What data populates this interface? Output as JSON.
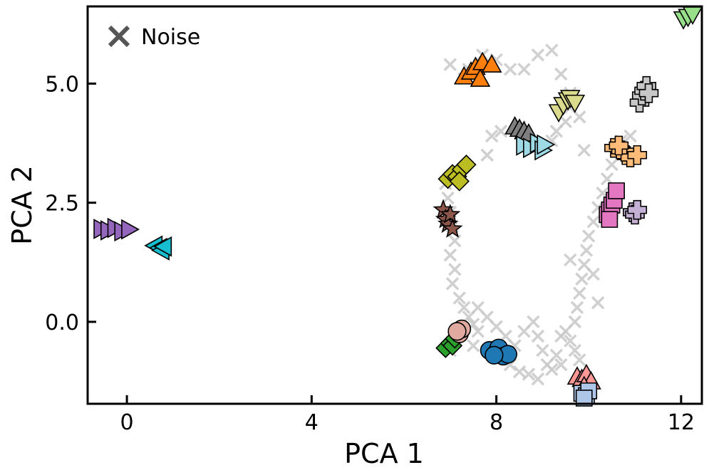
{
  "chart_data": {
    "type": "scatter",
    "title": "",
    "xlabel": "PCA 1",
    "ylabel": "PCA 2",
    "xlim": [
      -0.85,
      12.45
    ],
    "ylim": [
      -1.72,
      6.62
    ],
    "xticks": [
      0,
      4,
      8,
      12
    ],
    "xtick_labels": [
      "0",
      "4",
      "8",
      "12"
    ],
    "yticks": [
      0.0,
      2.5,
      5.0
    ],
    "ytick_labels": [
      "0.0",
      "2.5",
      "5.0"
    ],
    "grid": false,
    "legend": {
      "position": "top-left",
      "entries": [
        {
          "label": "Noise",
          "marker": "x",
          "color": "#555555"
        }
      ]
    },
    "noise": {
      "color": "#c8c8c8",
      "points": [
        [
          6.9,
          2.9
        ],
        [
          6.95,
          2.6
        ],
        [
          7.0,
          2.3
        ],
        [
          7.05,
          2.0
        ],
        [
          7.1,
          1.7
        ],
        [
          7.0,
          1.4
        ],
        [
          7.1,
          1.1
        ],
        [
          7.05,
          0.8
        ],
        [
          7.2,
          0.5
        ],
        [
          7.3,
          0.3
        ],
        [
          7.4,
          0.1
        ],
        [
          7.5,
          -0.05
        ],
        [
          7.6,
          -0.2
        ],
        [
          7.5,
          -0.5
        ],
        [
          7.1,
          -0.3
        ],
        [
          7.0,
          -0.6
        ],
        [
          7.6,
          0.3
        ],
        [
          7.8,
          0.1
        ],
        [
          8.0,
          -0.1
        ],
        [
          8.2,
          -0.3
        ],
        [
          8.4,
          -0.5
        ],
        [
          8.6,
          -0.2
        ],
        [
          8.8,
          0.0
        ],
        [
          8.9,
          -0.3
        ],
        [
          9.0,
          -0.6
        ],
        [
          9.1,
          -0.9
        ],
        [
          8.9,
          -1.2
        ],
        [
          8.7,
          -1.1
        ],
        [
          8.5,
          -1.05
        ],
        [
          9.2,
          -1.0
        ],
        [
          9.3,
          -0.7
        ],
        [
          9.4,
          -0.3
        ],
        [
          9.5,
          -0.2
        ],
        [
          9.6,
          -0.4
        ],
        [
          9.7,
          -0.6
        ],
        [
          9.8,
          -0.8
        ],
        [
          9.4,
          -0.9
        ],
        [
          8.3,
          -0.9
        ],
        [
          9.7,
          0.0
        ],
        [
          9.75,
          0.3
        ],
        [
          9.8,
          0.6
        ],
        [
          9.85,
          0.9
        ],
        [
          9.9,
          1.2
        ],
        [
          9.95,
          1.5
        ],
        [
          10.0,
          1.8
        ],
        [
          10.1,
          2.1
        ],
        [
          10.2,
          2.4
        ],
        [
          10.3,
          2.7
        ],
        [
          10.4,
          3.0
        ],
        [
          10.5,
          3.3
        ],
        [
          10.6,
          3.6
        ],
        [
          10.7,
          3.8
        ],
        [
          10.9,
          3.9
        ],
        [
          10.1,
          1.0
        ],
        [
          10.2,
          0.4
        ],
        [
          9.6,
          1.3
        ],
        [
          7.0,
          5.4
        ],
        [
          7.4,
          5.3
        ],
        [
          7.7,
          5.6
        ],
        [
          8.0,
          5.5
        ],
        [
          8.3,
          5.3
        ],
        [
          8.6,
          5.3
        ],
        [
          8.9,
          5.6
        ],
        [
          9.2,
          5.7
        ],
        [
          9.4,
          5.2
        ],
        [
          9.6,
          4.8
        ],
        [
          9.6,
          4.5
        ],
        [
          9.5,
          4.2
        ],
        [
          9.3,
          4.0
        ],
        [
          9.2,
          3.8
        ],
        [
          9.0,
          3.7
        ],
        [
          8.7,
          3.8
        ],
        [
          8.5,
          4.1
        ],
        [
          8.1,
          4.0
        ],
        [
          7.9,
          3.9
        ],
        [
          7.8,
          3.5
        ],
        [
          9.9,
          3.6
        ],
        [
          9.8,
          4.3
        ],
        [
          7.3,
          5.1
        ]
      ]
    },
    "clusters": [
      {
        "marker": "triangle-right",
        "color": "#9467bd",
        "points": [
          [
            -0.55,
            1.95
          ],
          [
            -0.4,
            1.92
          ],
          [
            -0.25,
            1.97
          ],
          [
            -0.1,
            1.9
          ],
          [
            0.05,
            1.94
          ]
        ]
      },
      {
        "marker": "triangle-left",
        "color": "#17becf",
        "points": [
          [
            0.6,
            1.6
          ],
          [
            0.7,
            1.55
          ],
          [
            0.75,
            1.5
          ],
          [
            0.8,
            1.58
          ]
        ]
      },
      {
        "marker": "triangle-up",
        "color": "#ff7f0e",
        "points": [
          [
            7.3,
            5.15
          ],
          [
            7.45,
            5.25
          ],
          [
            7.55,
            5.35
          ],
          [
            7.65,
            5.1
          ],
          [
            7.7,
            5.45
          ],
          [
            7.9,
            5.4
          ]
        ]
      },
      {
        "marker": "diamond",
        "color": "#bcbd22",
        "points": [
          [
            6.95,
            3.0
          ],
          [
            7.05,
            3.1
          ],
          [
            7.15,
            3.05
          ],
          [
            7.25,
            3.2
          ],
          [
            7.35,
            3.3
          ],
          [
            7.2,
            2.95
          ]
        ]
      },
      {
        "marker": "star",
        "color": "#8c564b",
        "points": [
          [
            6.85,
            2.35
          ],
          [
            6.9,
            2.15
          ],
          [
            6.95,
            2.05
          ],
          [
            7.0,
            2.25
          ],
          [
            7.05,
            1.95
          ]
        ]
      },
      {
        "marker": "diamond",
        "color": "#2ca02c",
        "points": [
          [
            6.9,
            -0.55
          ],
          [
            7.0,
            -0.45
          ],
          [
            7.05,
            -0.5
          ],
          [
            7.1,
            -0.35
          ]
        ]
      },
      {
        "marker": "circle",
        "color": "#e0aaa0",
        "points": [
          [
            7.2,
            -0.25
          ],
          [
            7.25,
            -0.15
          ],
          [
            7.15,
            -0.2
          ]
        ]
      },
      {
        "marker": "circle",
        "color": "#1f77b4",
        "points": [
          [
            7.85,
            -0.6
          ],
          [
            8.0,
            -0.65
          ],
          [
            8.05,
            -0.55
          ],
          [
            8.15,
            -0.72
          ],
          [
            8.25,
            -0.68
          ],
          [
            7.95,
            -0.7
          ]
        ]
      },
      {
        "marker": "triangle-up",
        "color": "#7f7f7f",
        "points": [
          [
            8.4,
            4.1
          ],
          [
            8.5,
            4.05
          ],
          [
            8.6,
            4.0
          ],
          [
            8.7,
            3.95
          ]
        ]
      },
      {
        "marker": "triangle-right",
        "color": "#9edae5",
        "points": [
          [
            8.6,
            3.7
          ],
          [
            8.75,
            3.65
          ],
          [
            8.9,
            3.75
          ],
          [
            9.0,
            3.6
          ],
          [
            9.05,
            3.72
          ]
        ]
      },
      {
        "marker": "triangle-down",
        "color": "#dbdb8d",
        "points": [
          [
            9.35,
            4.4
          ],
          [
            9.45,
            4.55
          ],
          [
            9.55,
            4.65
          ],
          [
            9.6,
            4.7
          ],
          [
            9.7,
            4.6
          ]
        ]
      },
      {
        "marker": "plus",
        "color": "#c7c7c7",
        "points": [
          [
            11.1,
            4.6
          ],
          [
            11.15,
            4.75
          ],
          [
            11.2,
            4.85
          ],
          [
            11.25,
            4.95
          ],
          [
            11.3,
            4.8
          ]
        ]
      },
      {
        "marker": "plus",
        "color": "#ffbb78",
        "points": [
          [
            10.55,
            3.65
          ],
          [
            10.7,
            3.6
          ],
          [
            10.8,
            3.5
          ],
          [
            10.9,
            3.45
          ],
          [
            11.05,
            3.5
          ],
          [
            10.65,
            3.7
          ]
        ]
      },
      {
        "marker": "square",
        "color": "#e377c2",
        "points": [
          [
            10.4,
            2.25
          ],
          [
            10.45,
            2.35
          ],
          [
            10.5,
            2.45
          ],
          [
            10.55,
            2.55
          ],
          [
            10.6,
            2.75
          ],
          [
            10.45,
            2.15
          ]
        ]
      },
      {
        "marker": "plus",
        "color": "#c5b0d5",
        "points": [
          [
            10.95,
            2.3
          ],
          [
            11.0,
            2.25
          ],
          [
            11.05,
            2.35
          ]
        ]
      },
      {
        "marker": "triangle-down",
        "color": "#98df8a",
        "points": [
          [
            12.05,
            6.35
          ],
          [
            12.15,
            6.4
          ],
          [
            12.25,
            6.45
          ]
        ]
      },
      {
        "marker": "triangle-up",
        "color": "#ff9896",
        "points": [
          [
            9.75,
            -1.15
          ],
          [
            9.85,
            -1.2
          ],
          [
            9.95,
            -1.1
          ],
          [
            10.05,
            -1.25
          ],
          [
            9.9,
            -1.35
          ]
        ]
      },
      {
        "marker": "square",
        "color": "#aec7e8",
        "points": [
          [
            9.85,
            -1.5
          ],
          [
            9.95,
            -1.55
          ],
          [
            10.0,
            -1.45
          ],
          [
            9.9,
            -1.6
          ]
        ]
      }
    ]
  }
}
